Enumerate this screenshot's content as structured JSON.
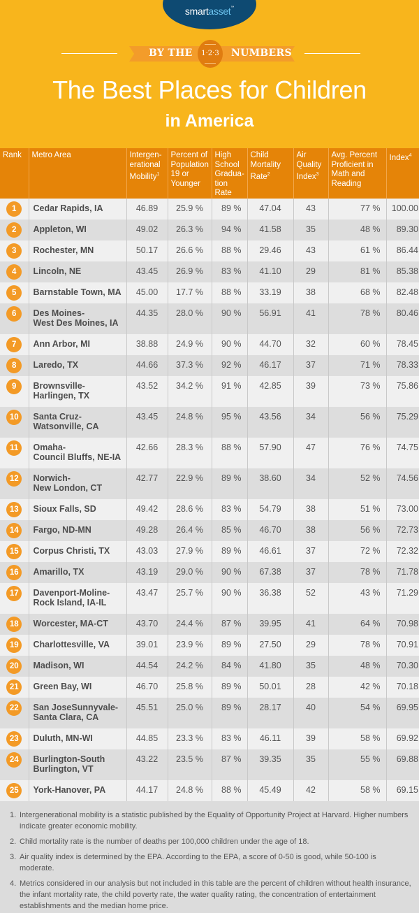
{
  "header": {
    "brand": {
      "part1": "smart",
      "part2": "asset",
      "tm": "™"
    },
    "ribbon": {
      "left": "BY THE",
      "badge": "1·2·3",
      "right": "NUMBERS"
    },
    "title_line1": "The Best Places for Children",
    "title_line2": "in America"
  },
  "table": {
    "columns": [
      {
        "label": "Rank",
        "sup": ""
      },
      {
        "label": "Metro Area",
        "sup": ""
      },
      {
        "label": "Intergen-erational Mobility",
        "sup": "1"
      },
      {
        "label": "Percent of Population 19 or Younger",
        "sup": ""
      },
      {
        "label": "High School Gradua-tion Rate",
        "sup": ""
      },
      {
        "label": "Child Mortality Rate",
        "sup": "2"
      },
      {
        "label": "Air Quality Index",
        "sup": "3"
      },
      {
        "label": "Avg. Percent Proficient in Math and Reading",
        "sup": ""
      },
      {
        "label": "Index",
        "sup": "4"
      }
    ],
    "rows": [
      {
        "rank": "1",
        "metro": [
          "Cedar Rapids, IA"
        ],
        "mobility": "46.89",
        "pop19": "25.9 %",
        "hs": "89 %",
        "mortality": "47.04",
        "air": "43",
        "proficient": "77 %",
        "index": "100.00"
      },
      {
        "rank": "2",
        "metro": [
          "Appleton, WI"
        ],
        "mobility": "49.02",
        "pop19": "26.3 %",
        "hs": "94 %",
        "mortality": "41.58",
        "air": "35",
        "proficient": "48 %",
        "index": "89.30"
      },
      {
        "rank": "3",
        "metro": [
          "Rochester, MN"
        ],
        "mobility": "50.17",
        "pop19": "26.6 %",
        "hs": "88 %",
        "mortality": "29.46",
        "air": "43",
        "proficient": "61 %",
        "index": "86.44"
      },
      {
        "rank": "4",
        "metro": [
          "Lincoln, NE"
        ],
        "mobility": "43.45",
        "pop19": "26.9 %",
        "hs": "83 %",
        "mortality": "41.10",
        "air": "29",
        "proficient": "81 %",
        "index": "85.38"
      },
      {
        "rank": "5",
        "metro": [
          "Barnstable Town, MA"
        ],
        "mobility": "45.00",
        "pop19": "17.7 %",
        "hs": "88 %",
        "mortality": "33.19",
        "air": "38",
        "proficient": "68 %",
        "index": "82.48"
      },
      {
        "rank": "6",
        "metro": [
          "Des Moines-",
          "West Des Moines, IA"
        ],
        "mobility": "44.35",
        "pop19": "28.0 %",
        "hs": "90 %",
        "mortality": "56.91",
        "air": "41",
        "proficient": "78 %",
        "index": "80.46"
      },
      {
        "rank": "7",
        "metro": [
          "Ann Arbor, MI"
        ],
        "mobility": "38.88",
        "pop19": "24.9 %",
        "hs": "90 %",
        "mortality": "44.70",
        "air": "32",
        "proficient": "60 %",
        "index": "78.45"
      },
      {
        "rank": "8",
        "metro": [
          "Laredo, TX"
        ],
        "mobility": "44.66",
        "pop19": "37.3 %",
        "hs": "92 %",
        "mortality": "46.17",
        "air": "37",
        "proficient": "71 %",
        "index": "78.33"
      },
      {
        "rank": "9",
        "metro": [
          "Brownsville-",
          "Harlingen, TX"
        ],
        "mobility": "43.52",
        "pop19": "34.2 %",
        "hs": "91 %",
        "mortality": "42.85",
        "air": "39",
        "proficient": "73 %",
        "index": "75.86"
      },
      {
        "rank": "10",
        "metro": [
          "Santa Cruz-",
          "Watsonville, CA"
        ],
        "mobility": "43.45",
        "pop19": "24.8 %",
        "hs": "95 %",
        "mortality": "43.56",
        "air": "34",
        "proficient": "56 %",
        "index": "75.29"
      },
      {
        "rank": "11",
        "metro": [
          "Omaha-",
          "Council Bluffs, NE-IA"
        ],
        "mobility": "42.66",
        "pop19": "28.3 %",
        "hs": "88 %",
        "mortality": "57.90",
        "air": "47",
        "proficient": "76 %",
        "index": "74.75"
      },
      {
        "rank": "12",
        "metro": [
          "Norwich-",
          "New London, CT"
        ],
        "mobility": "42.77",
        "pop19": "22.9 %",
        "hs": "89 %",
        "mortality": "38.60",
        "air": "34",
        "proficient": "52 %",
        "index": "74.56"
      },
      {
        "rank": "13",
        "metro": [
          "Sioux Falls, SD"
        ],
        "mobility": "49.42",
        "pop19": "28.6 %",
        "hs": "83 %",
        "mortality": "54.79",
        "air": "38",
        "proficient": "51 %",
        "index": "73.00"
      },
      {
        "rank": "14",
        "metro": [
          "Fargo, ND-MN"
        ],
        "mobility": "49.28",
        "pop19": "26.4 %",
        "hs": "85 %",
        "mortality": "46.70",
        "air": "38",
        "proficient": "56 %",
        "index": "72.73"
      },
      {
        "rank": "15",
        "metro": [
          "Corpus Christi, TX"
        ],
        "mobility": "43.03",
        "pop19": "27.9 %",
        "hs": "89 %",
        "mortality": "46.61",
        "air": "37",
        "proficient": "72 %",
        "index": "72.32"
      },
      {
        "rank": "16",
        "metro": [
          "Amarillo, TX"
        ],
        "mobility": "43.19",
        "pop19": "29.0 %",
        "hs": "90 %",
        "mortality": "67.38",
        "air": "37",
        "proficient": "78 %",
        "index": "71.78"
      },
      {
        "rank": "17",
        "metro": [
          "Davenport-Moline-",
          "Rock Island, IA-IL"
        ],
        "mobility": "43.47",
        "pop19": "25.7 %",
        "hs": "90 %",
        "mortality": "36.38",
        "air": "52",
        "proficient": "43 %",
        "index": "71.29"
      },
      {
        "rank": "18",
        "metro": [
          "Worcester, MA-CT"
        ],
        "mobility": "43.70",
        "pop19": "24.4 %",
        "hs": "87 %",
        "mortality": "39.95",
        "air": "41",
        "proficient": "64 %",
        "index": "70.98"
      },
      {
        "rank": "19",
        "metro": [
          "Charlottesville, VA"
        ],
        "mobility": "39.01",
        "pop19": "23.9 %",
        "hs": "89 %",
        "mortality": "27.50",
        "air": "29",
        "proficient": "78 %",
        "index": "70.91"
      },
      {
        "rank": "20",
        "metro": [
          "Madison, WI"
        ],
        "mobility": "44.54",
        "pop19": "24.2 %",
        "hs": "84 %",
        "mortality": "41.80",
        "air": "35",
        "proficient": "48 %",
        "index": "70.30"
      },
      {
        "rank": "21",
        "metro": [
          "Green Bay, WI"
        ],
        "mobility": "46.70",
        "pop19": "25.8 %",
        "hs": "89 %",
        "mortality": "50.01",
        "air": "28",
        "proficient": "42 %",
        "index": "70.18"
      },
      {
        "rank": "22",
        "metro": [
          "San JoseSunnyvale-",
          "Santa Clara, CA"
        ],
        "mobility": "45.51",
        "pop19": "25.0 %",
        "hs": "89 %",
        "mortality": "28.17",
        "air": "40",
        "proficient": "54 %",
        "index": "69.95"
      },
      {
        "rank": "23",
        "metro": [
          "Duluth, MN-WI"
        ],
        "mobility": "44.85",
        "pop19": "23.3 %",
        "hs": "83 %",
        "mortality": "46.11",
        "air": "39",
        "proficient": "58 %",
        "index": "69.92"
      },
      {
        "rank": "24",
        "metro": [
          "Burlington-South",
          "Burlington, VT"
        ],
        "mobility": "43.22",
        "pop19": "23.5 %",
        "hs": "87 %",
        "mortality": "39.35",
        "air": "35",
        "proficient": "55 %",
        "index": "69.88"
      },
      {
        "rank": "25",
        "metro": [
          "York-Hanover, PA"
        ],
        "mobility": "44.17",
        "pop19": "24.8 %",
        "hs": "88 %",
        "mortality": "45.49",
        "air": "42",
        "proficient": "58 %",
        "index": "69.15"
      }
    ]
  },
  "footnotes": [
    {
      "num": "1.",
      "text": "Intergenerational mobility is a statistic published by the Equality of Opportunity Project at Harvard. Higher numbers indicate greater economic mobility."
    },
    {
      "num": "2.",
      "text": "Child mortality rate is the number of deaths per 100,000 children under the age of 18."
    },
    {
      "num": "3.",
      "text": "Air quality index is determined by the EPA. According to the EPA, a score of 0-50 is good, while 50-100 is moderate."
    },
    {
      "num": "4.",
      "text": "Metrics considered in our analysis but not included in this table are the percent of children without health insurance, the infant mortality rate, the child poverty rate, the water quality rating, the concentration of entertainment establishments and the median home price."
    }
  ],
  "colors": {
    "background": "#f8b51c",
    "header_row": "#e58408",
    "rank_badge": "#f39a26",
    "logo_oval": "#0e4a72"
  }
}
